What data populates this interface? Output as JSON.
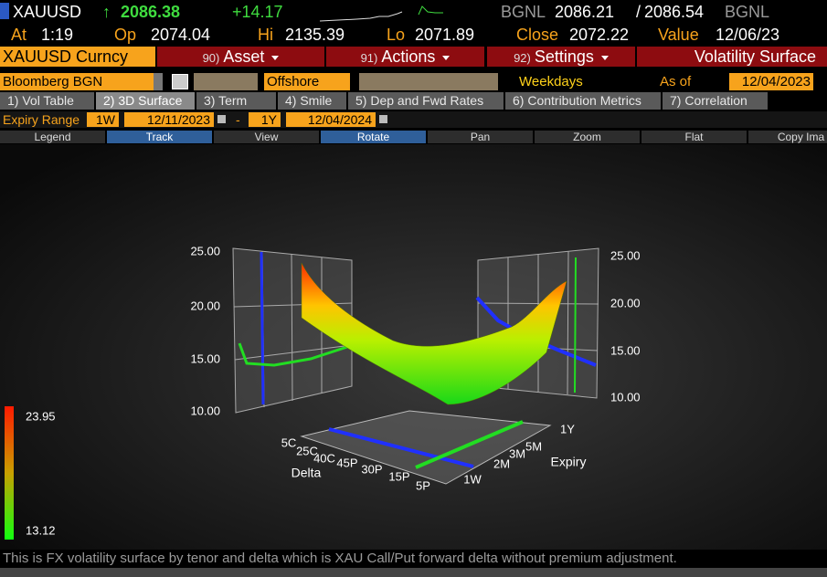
{
  "header": {
    "ticker": "XAUUSD",
    "arrow": "↑",
    "last": "2086.38",
    "change": "+14.17",
    "source": "BGNL",
    "bid": "2086.21",
    "separator": "/",
    "ask": "2086.54",
    "source2": "BGNL",
    "stats": [
      {
        "label": "At",
        "value": "1:19"
      },
      {
        "label": "Op",
        "value": "2074.04"
      },
      {
        "label": "Hi",
        "value": "2135.39"
      },
      {
        "label": "Lo",
        "value": "2071.89"
      },
      {
        "label": "Close",
        "value": "2072.22"
      },
      {
        "label": "Value",
        "value": "12/06/23"
      }
    ]
  },
  "menu": {
    "security": "XAUUSD Curncy",
    "items": [
      {
        "num": "90)",
        "label": "Asset"
      },
      {
        "num": "91)",
        "label": "Actions"
      },
      {
        "num": "92)",
        "label": "Settings"
      }
    ],
    "function": "Volatility Surface"
  },
  "toolbar": {
    "source": "Bloomberg BGN",
    "market": "Offshore",
    "calendar": "Weekdays",
    "as_of_label": "As of",
    "as_of": "12/04/2023"
  },
  "tabs": [
    "1) Vol Table",
    "2) 3D Surface",
    "3) Term",
    "4) Smile",
    "5) Dep and Fwd Rates",
    "6) Contribution Metrics",
    "7) Correlation"
  ],
  "range": {
    "label": "Expiry Range",
    "from_tenor": "1W",
    "from_date": "12/11/2023",
    "dash": "-",
    "to_tenor": "1Y",
    "to_date": "12/04/2024"
  },
  "buttons": [
    "Legend",
    "Track",
    "View",
    "Rotate",
    "Pan",
    "Zoom",
    "Flat",
    "Copy Ima"
  ],
  "plot": {
    "left_ticks": [
      "25.00",
      "20.00",
      "15.00",
      "10.00"
    ],
    "right_ticks": [
      "25.00",
      "20.00",
      "15.00",
      "10.00"
    ],
    "delta_labels": [
      "5C",
      "25C",
      "40C",
      "45P",
      "30P",
      "15P",
      "5P"
    ],
    "delta_title": "Delta",
    "expiry_labels": [
      "1Y",
      "5M",
      "3M",
      "2M",
      "1W"
    ],
    "expiry_title": "Expiry",
    "colorbar_max": "23.95",
    "colorbar_min": "13.12"
  },
  "footer": "This is FX volatility surface by tenor and delta which is XAU Call/Put forward delta without premium adjustment."
}
